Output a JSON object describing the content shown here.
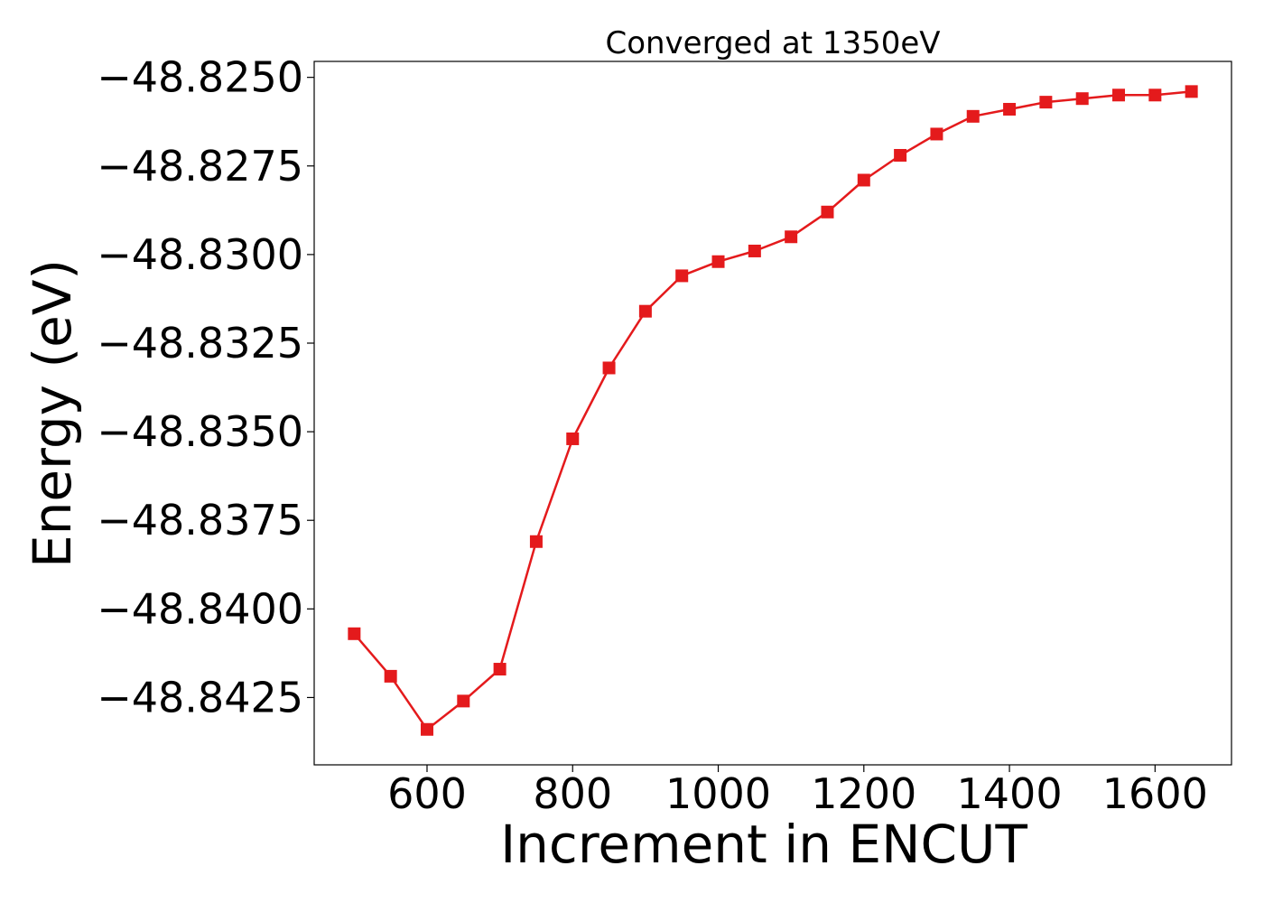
{
  "chart_data": {
    "type": "line",
    "title": "Converged at 1350eV",
    "xlabel": "Increment in ENCUT",
    "ylabel": "Energy (eV)",
    "xlim": [
      445,
      1705
    ],
    "ylim": [
      -48.8444,
      -48.82455
    ],
    "x_ticks": [
      600,
      800,
      1000,
      1200,
      1400,
      1600
    ],
    "x_tick_labels": [
      "600",
      "800",
      "1000",
      "1200",
      "1400",
      "1600"
    ],
    "y_ticks": [
      -48.825,
      -48.8275,
      -48.83,
      -48.8325,
      -48.835,
      -48.8375,
      -48.84,
      -48.8425
    ],
    "y_tick_labels": [
      "−48.8250",
      "−48.8275",
      "−48.8300",
      "−48.8325",
      "−48.8350",
      "−48.8375",
      "−48.8400",
      "−48.8425"
    ],
    "grid": false,
    "series": [
      {
        "color": "#e41a1c",
        "marker": "square",
        "x": [
          500,
          550,
          600,
          650,
          700,
          750,
          800,
          850,
          900,
          950,
          1000,
          1050,
          1100,
          1150,
          1200,
          1250,
          1300,
          1350,
          1400,
          1450,
          1500,
          1550,
          1600,
          1650
        ],
        "y": [
          -48.8407,
          -48.8419,
          -48.8434,
          -48.8426,
          -48.8417,
          -48.8381,
          -48.8352,
          -48.8332,
          -48.8316,
          -48.8306,
          -48.8302,
          -48.8299,
          -48.8295,
          -48.8288,
          -48.8279,
          -48.8272,
          -48.8266,
          -48.8261,
          -48.8259,
          -48.8257,
          -48.8256,
          -48.8255,
          -48.8255,
          -48.8254
        ]
      }
    ]
  }
}
